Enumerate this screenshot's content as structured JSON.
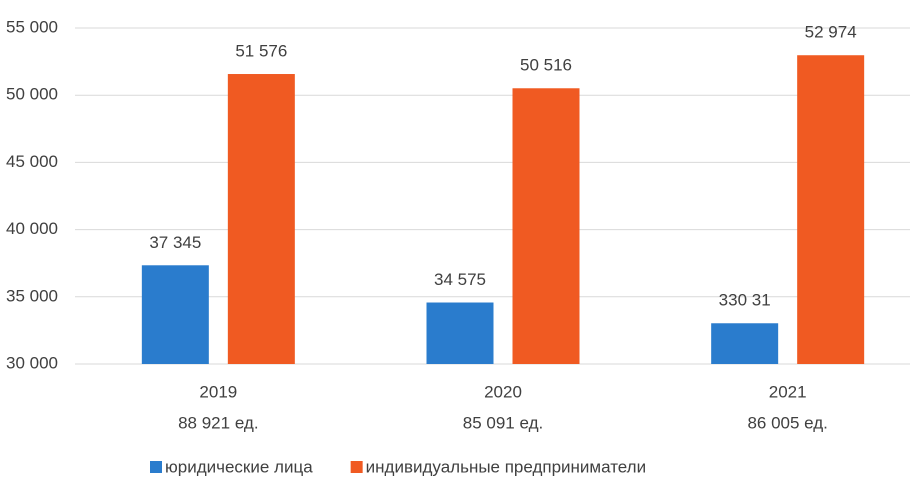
{
  "chart_data": {
    "type": "bar",
    "categories": [
      [
        "2019",
        "88 921 ед."
      ],
      [
        "2020",
        "85 091 ед."
      ],
      [
        "2021",
        "86 005 ед."
      ]
    ],
    "series": [
      {
        "name": "юридические лица",
        "color": "#2a7ccd",
        "values": [
          37345,
          34575,
          33031
        ],
        "value_labels": [
          "37 345",
          "34 575",
          "330 31"
        ]
      },
      {
        "name": "индивидуальные предприниматели",
        "color": "#f05a22",
        "values": [
          51576,
          50516,
          52974
        ],
        "value_labels": [
          "51 576",
          "50 516",
          "52 974"
        ]
      }
    ],
    "ylim": [
      30000,
      55000
    ],
    "yticks": [
      {
        "value": 30000,
        "label": "30 000"
      },
      {
        "value": 35000,
        "label": "35 000"
      },
      {
        "value": 40000,
        "label": "40 000"
      },
      {
        "value": 45000,
        "label": "45 000"
      },
      {
        "value": 50000,
        "label": "50 000"
      },
      {
        "value": 55000,
        "label": "55 000"
      }
    ],
    "grid": true,
    "legend": "bottom"
  }
}
